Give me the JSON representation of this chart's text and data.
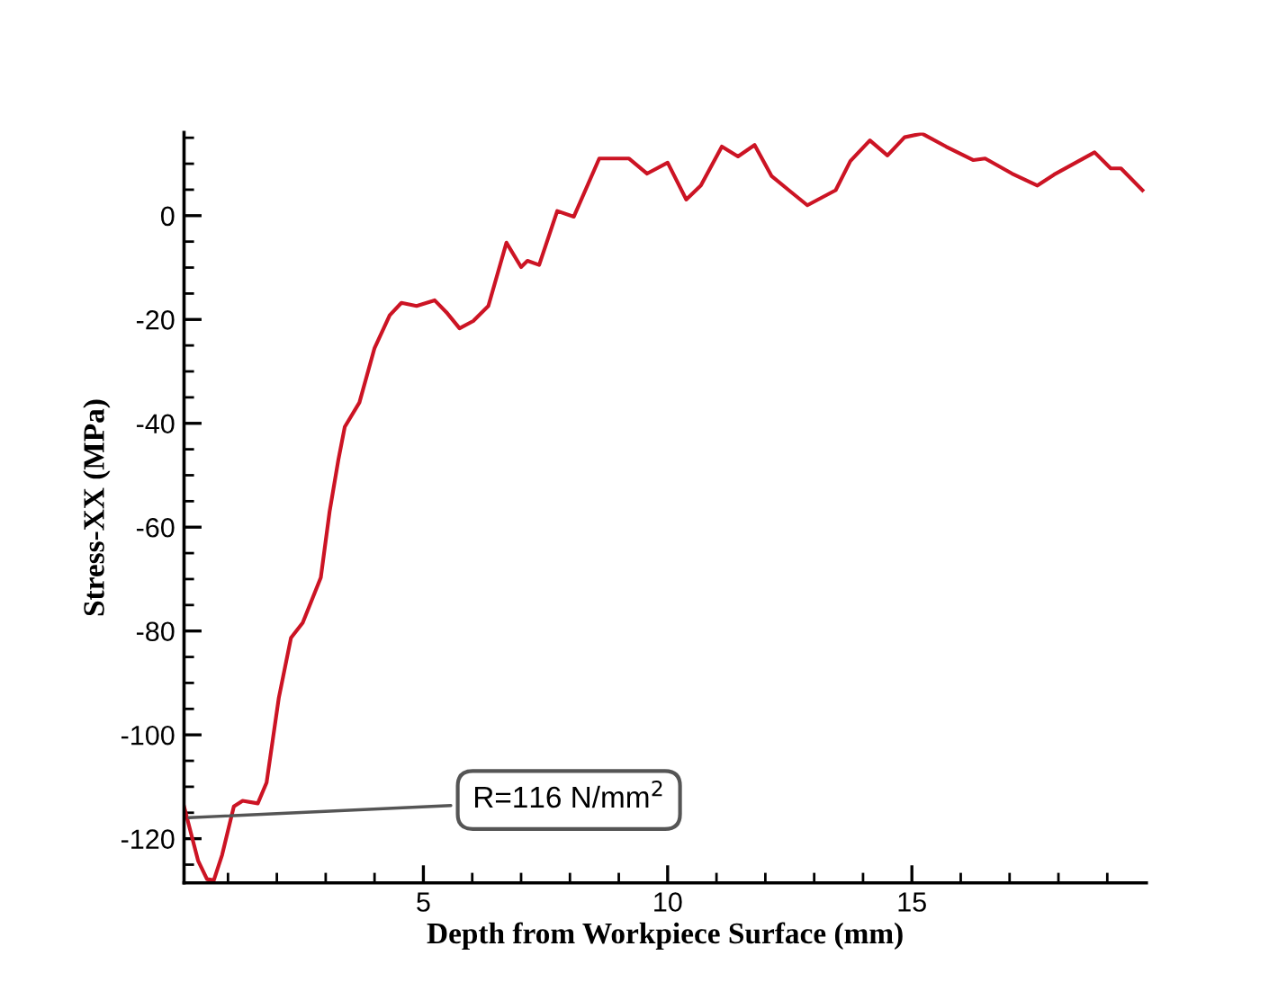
{
  "chart_data": {
    "type": "line",
    "xlabel": "Depth from Workpiece Surface (mm)",
    "ylabel": "Stress-XX (MPa)",
    "x": [
      0.1,
      0.39,
      0.57,
      0.71,
      0.88,
      1.12,
      1.3,
      1.61,
      1.79,
      2.04,
      2.29,
      2.53,
      2.9,
      3.08,
      3.26,
      3.39,
      3.69,
      4.0,
      4.31,
      4.55,
      4.86,
      5.23,
      5.47,
      5.74,
      6.02,
      6.33,
      6.7,
      7.0,
      7.13,
      7.37,
      7.74,
      8.08,
      8.6,
      9.21,
      9.58,
      10.0,
      10.38,
      10.68,
      11.11,
      11.44,
      11.78,
      12.13,
      12.52,
      12.86,
      13.44,
      13.74,
      14.14,
      14.5,
      14.85,
      15.21,
      15.7,
      16.26,
      16.5,
      17.05,
      17.57,
      17.91,
      18.74,
      19.07,
      19.28,
      19.72
    ],
    "series": [
      {
        "color": "#cc1424",
        "values": [
          -113.8,
          -124.3,
          -127.8,
          -128,
          -123.1,
          -113.8,
          -112.7,
          -113.2,
          -109.2,
          -92.9,
          -81.3,
          -78.4,
          -69.7,
          -57,
          -47,
          -40.7,
          -36,
          -25.5,
          -19.2,
          -16.8,
          -17.4,
          -16.3,
          -18.6,
          -21.7,
          -20.3,
          -17.4,
          -5.2,
          -9.9,
          -8.7,
          -9.5,
          0.9,
          -0.2,
          11,
          11,
          8.1,
          10.2,
          3.1,
          5.8,
          13.3,
          11.4,
          13.6,
          7.6,
          4.6,
          2.0,
          4.9,
          10.5,
          14.5,
          11.6,
          15.1,
          15.8,
          13.3,
          10.7,
          11,
          8.1,
          5.8,
          7.9,
          12.2,
          9.1,
          9.1,
          4.9
        ]
      }
    ],
    "xlim": [
      0.1,
      19.8
    ],
    "ylim": [
      -128.5,
      16
    ],
    "xticks": [
      {
        "value": 1,
        "label": null
      },
      {
        "value": 2,
        "label": null
      },
      {
        "value": 3,
        "label": null
      },
      {
        "value": 4,
        "label": null
      },
      5,
      {
        "value": 6,
        "label": null
      },
      {
        "value": 7,
        "label": null
      },
      {
        "value": 8,
        "label": null
      },
      {
        "value": 9,
        "label": null
      },
      10,
      {
        "value": 11,
        "label": null
      },
      {
        "value": 12,
        "label": null
      },
      {
        "value": 13,
        "label": null
      },
      {
        "value": 14,
        "label": null
      },
      15,
      {
        "value": 16,
        "label": null
      },
      {
        "value": 17,
        "label": null
      },
      {
        "value": 18,
        "label": null
      },
      {
        "value": 19,
        "label": null
      }
    ],
    "yticks": [
      {
        "value": -125,
        "label": null
      },
      -120,
      {
        "value": -115,
        "label": null
      },
      {
        "value": -110,
        "label": null
      },
      {
        "value": -105,
        "label": null
      },
      -100,
      {
        "value": -95,
        "label": null
      },
      {
        "value": -90,
        "label": null
      },
      {
        "value": -85,
        "label": null
      },
      -80,
      {
        "value": -75,
        "label": null
      },
      {
        "value": -70,
        "label": null
      },
      {
        "value": -65,
        "label": null
      },
      -60,
      {
        "value": -55,
        "label": null
      },
      {
        "value": -50,
        "label": null
      },
      {
        "value": -45,
        "label": null
      },
      -40,
      {
        "value": -35,
        "label": null
      },
      {
        "value": -30,
        "label": null
      },
      {
        "value": -25,
        "label": null
      },
      -20,
      {
        "value": -15,
        "label": null
      },
      {
        "value": -10,
        "label": null
      },
      {
        "value": -5,
        "label": null
      },
      0,
      {
        "value": 5,
        "label": null
      },
      {
        "value": 10,
        "label": null
      },
      {
        "value": 15,
        "label": null
      }
    ],
    "grid": false,
    "marker": "none",
    "line_style": "solid",
    "annotations": [
      {
        "text": "R=116 N/mm$^{2}$",
        "x": 0.1,
        "y": -116
      }
    ]
  }
}
